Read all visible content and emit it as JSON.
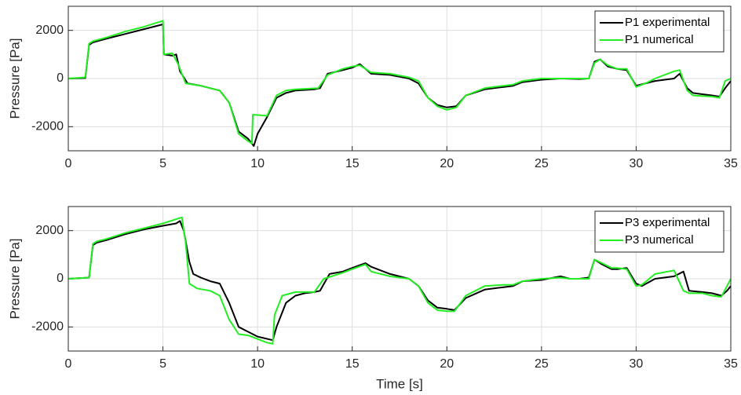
{
  "chart_data": [
    {
      "type": "line",
      "ylabel": "Pressure [Pa]",
      "xlim": [
        0,
        35
      ],
      "ylim": [
        -3000,
        3000
      ],
      "xticks": [
        0,
        5,
        10,
        15,
        20,
        25,
        30,
        35
      ],
      "yticks": [
        -2000,
        0,
        2000
      ],
      "grid": true,
      "legend": "northeast",
      "series": [
        {
          "name": "P1 experimental",
          "color": "#000000",
          "x": [
            0,
            0.9,
            1.1,
            1.3,
            2,
            3,
            4,
            5,
            5.05,
            5.5,
            5.7,
            5.9,
            6.3,
            7,
            8,
            8.5,
            9,
            9.5,
            9.8,
            10,
            10.5,
            11,
            11.5,
            12,
            13,
            13.3,
            13.7,
            14.5,
            15,
            15.4,
            16,
            17,
            18,
            18.5,
            19,
            19.5,
            20,
            20.5,
            21,
            22,
            23,
            23.5,
            24,
            25,
            26,
            27,
            27.5,
            27.8,
            28.1,
            28.5,
            29,
            29.5,
            30,
            30.5,
            31,
            32,
            32.3,
            32.7,
            33,
            34,
            34.4,
            34.7,
            35
          ],
          "values": [
            0,
            20,
            1400,
            1500,
            1650,
            1850,
            2050,
            2250,
            1000,
            950,
            1000,
            300,
            -200,
            -300,
            -500,
            -1000,
            -2200,
            -2500,
            -2800,
            -2300,
            -1600,
            -800,
            -600,
            -500,
            -450,
            -400,
            200,
            350,
            450,
            600,
            200,
            150,
            0,
            -200,
            -800,
            -1100,
            -1200,
            -1150,
            -700,
            -450,
            -350,
            -300,
            -150,
            -50,
            0,
            -20,
            0,
            700,
            800,
            500,
            400,
            350,
            -300,
            -200,
            -100,
            0,
            200,
            -400,
            -600,
            -700,
            -750,
            -400,
            -100
          ]
        },
        {
          "name": "P1 numerical",
          "color": "#22ee22",
          "x": [
            0,
            0.9,
            1.1,
            1.3,
            2,
            3,
            4,
            5,
            5.05,
            5.5,
            5.8,
            6.2,
            7,
            8,
            8.5,
            9,
            9.5,
            9.7,
            9.75,
            10.5,
            11,
            11.5,
            12,
            13.2,
            13.7,
            14.5,
            15,
            15.4,
            16,
            17,
            18,
            18.5,
            19,
            19.5,
            20,
            20.5,
            21,
            22,
            23,
            23.5,
            24,
            25,
            26,
            27,
            27.5,
            27.8,
            28.1,
            28.5,
            29,
            29.5,
            30,
            30.5,
            31,
            32,
            32.3,
            32.7,
            33,
            34,
            34.4,
            34.7,
            35
          ],
          "values": [
            0,
            50,
            1450,
            1550,
            1700,
            1950,
            2150,
            2400,
            1000,
            1050,
            600,
            -200,
            -300,
            -500,
            -1000,
            -2300,
            -2600,
            -2700,
            -1500,
            -1550,
            -700,
            -500,
            -450,
            -400,
            150,
            400,
            500,
            550,
            250,
            200,
            50,
            -100,
            -800,
            -1150,
            -1300,
            -1200,
            -700,
            -400,
            -300,
            -250,
            -100,
            0,
            0,
            0,
            0,
            650,
            800,
            550,
            400,
            400,
            -350,
            -200,
            0,
            300,
            350,
            -500,
            -700,
            -750,
            -800,
            -100,
            0
          ]
        }
      ]
    },
    {
      "type": "line",
      "xlabel": "Time [s]",
      "ylabel": "Pressure [Pa]",
      "xlim": [
        0,
        35
      ],
      "ylim": [
        -3000,
        3000
      ],
      "xticks": [
        0,
        5,
        10,
        15,
        20,
        25,
        30,
        35
      ],
      "yticks": [
        -2000,
        0,
        2000
      ],
      "grid": true,
      "legend": "northeast",
      "series": [
        {
          "name": "P3 experimental",
          "color": "#000000",
          "x": [
            0,
            1.1,
            1.3,
            1.5,
            2,
            3,
            4,
            5,
            5.7,
            5.9,
            6.1,
            6.4,
            6.6,
            7,
            7.5,
            8,
            8.5,
            9,
            9.5,
            10,
            10.8,
            11,
            11.5,
            12,
            12.5,
            13,
            13.3,
            13.8,
            14.5,
            15,
            15.7,
            16,
            17,
            18,
            18.5,
            19,
            19.5,
            20,
            20.4,
            21,
            22,
            23,
            23.5,
            24,
            25,
            26,
            26.5,
            27,
            27.5,
            27.8,
            28.2,
            28.7,
            29,
            29.5,
            30,
            30.3,
            31,
            32,
            32.5,
            32.8,
            33.5,
            34,
            34.5,
            34.8,
            35
          ],
          "values": [
            0,
            50,
            1400,
            1500,
            1600,
            1850,
            2050,
            2200,
            2300,
            2400,
            2000,
            700,
            200,
            50,
            -100,
            -200,
            -1000,
            -2000,
            -2200,
            -2400,
            -2550,
            -2000,
            -1000,
            -700,
            -600,
            -550,
            -500,
            200,
            300,
            450,
            650,
            500,
            200,
            0,
            -300,
            -900,
            -1200,
            -1250,
            -1300,
            -800,
            -450,
            -350,
            -300,
            -100,
            -50,
            100,
            0,
            0,
            50,
            800,
            600,
            400,
            400,
            450,
            -200,
            -300,
            0,
            100,
            300,
            -500,
            -550,
            -600,
            -700,
            -500,
            -300
          ]
        },
        {
          "name": "P3 numerical",
          "color": "#22ee22",
          "x": [
            0,
            1.1,
            1.3,
            1.5,
            2,
            3,
            4,
            5,
            5.8,
            6,
            6.2,
            6.4,
            6.8,
            7.5,
            8,
            8.5,
            9,
            9.5,
            10.5,
            10.8,
            10.9,
            11.3,
            12,
            13,
            13.5,
            14.5,
            15,
            15.7,
            16,
            17,
            18,
            18.5,
            19,
            19.5,
            20,
            20.4,
            21,
            22,
            23,
            23.5,
            24,
            25,
            26,
            26.5,
            27,
            27.5,
            27.8,
            28.2,
            28.7,
            29,
            29.5,
            30,
            30.3,
            31,
            32,
            32.5,
            32.8,
            33.5,
            34,
            34.5,
            34.8,
            35
          ],
          "values": [
            0,
            50,
            1450,
            1550,
            1650,
            1900,
            2100,
            2300,
            2500,
            2550,
            1500,
            -200,
            -400,
            -500,
            -700,
            -1700,
            -2300,
            -2350,
            -2650,
            -2700,
            -1500,
            -700,
            -550,
            -550,
            0,
            250,
            400,
            600,
            300,
            100,
            0,
            -300,
            -1000,
            -1300,
            -1350,
            -1350,
            -700,
            -300,
            -250,
            -250,
            -100,
            0,
            50,
            0,
            0,
            0,
            800,
            650,
            450,
            450,
            400,
            -300,
            -250,
            200,
            350,
            -500,
            -600,
            -600,
            -700,
            -750,
            -300,
            0
          ]
        }
      ]
    }
  ]
}
